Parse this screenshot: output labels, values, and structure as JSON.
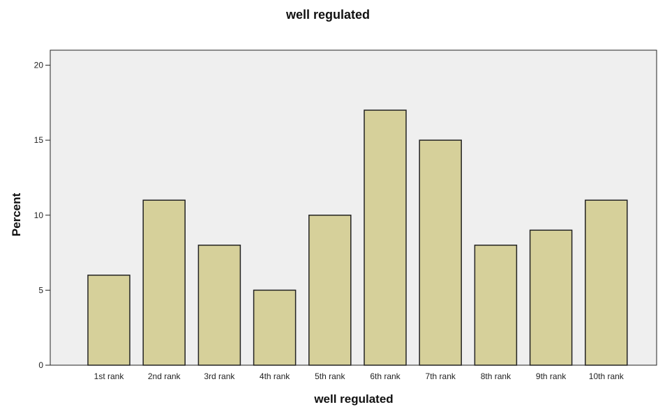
{
  "chart_data": {
    "type": "bar",
    "title": "well regulated",
    "xlabel": "well regulated",
    "ylabel": "Percent",
    "categories": [
      "1st rank",
      "2nd rank",
      "3rd rank",
      "4th rank",
      "5th rank",
      "6th rank",
      "7th rank",
      "8th rank",
      "9th rank",
      "10th rank"
    ],
    "values": [
      6,
      11,
      8,
      5,
      10,
      17,
      15,
      8,
      9,
      11
    ],
    "ylim": [
      0,
      21
    ],
    "yticks": [
      0,
      5,
      10,
      15,
      20
    ],
    "grid": false,
    "colors": {
      "bar_fill": "#d6d09a",
      "bar_stroke": "#222222",
      "plot_background": "#efefef",
      "axis": "#222222"
    }
  }
}
